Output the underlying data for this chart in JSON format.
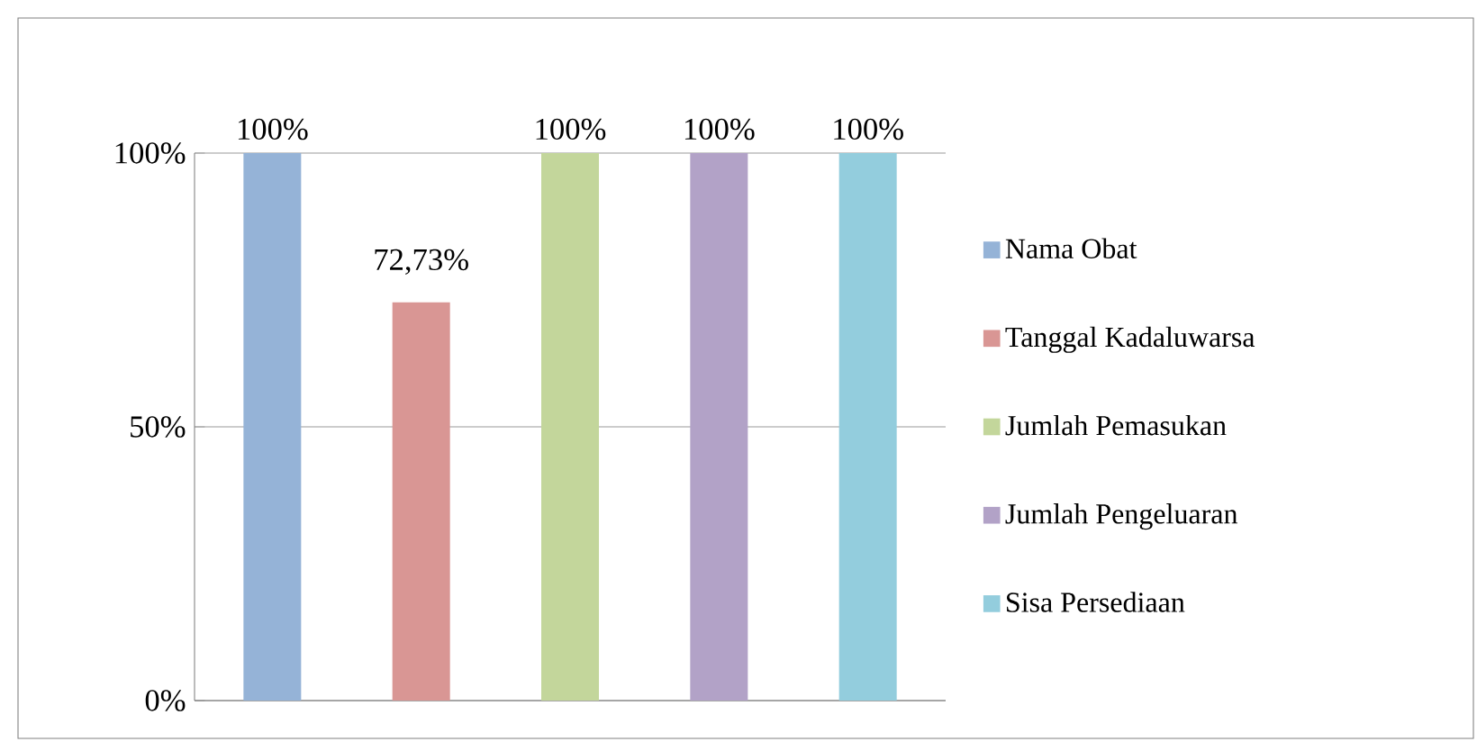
{
  "chart_data": {
    "type": "bar",
    "categories": [
      null
    ],
    "series": [
      {
        "name": "Nama Obat",
        "color": "#95b3d7",
        "values": [
          100
        ],
        "value_labels": [
          "100%"
        ]
      },
      {
        "name": "Tanggal Kadaluwarsa",
        "color": "#d99694",
        "values": [
          72.73
        ],
        "value_labels": [
          "72,73%"
        ]
      },
      {
        "name": "Jumlah Pemasukan",
        "color": "#c3d69b",
        "values": [
          100
        ],
        "value_labels": [
          "100%"
        ]
      },
      {
        "name": "Jumlah Pengeluaran",
        "color": "#b2a2c7",
        "values": [
          100
        ],
        "value_labels": [
          "100%"
        ]
      },
      {
        "name": "Sisa Persediaan",
        "color": "#93cddd",
        "values": [
          100
        ],
        "value_labels": [
          "100%"
        ]
      }
    ],
    "ylim": [
      0,
      100
    ],
    "yticks": [
      {
        "value": 0,
        "label": "0%"
      },
      {
        "value": 50,
        "label": "50%"
      },
      {
        "value": 100,
        "label": "100%"
      }
    ],
    "grid": "y",
    "legend": "right"
  }
}
